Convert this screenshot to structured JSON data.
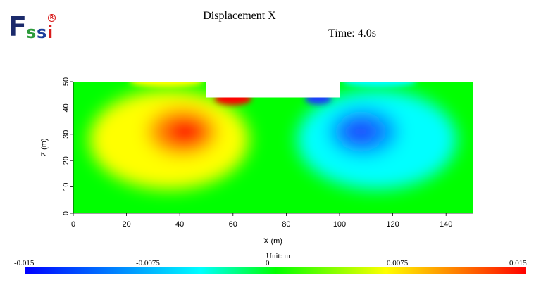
{
  "title": "Displacement X",
  "time_label": "Time: 4.0s",
  "logo": {
    "f": "F",
    "s1": "s",
    "s2": "s",
    "i": "i",
    "reg": "R"
  },
  "colors": {
    "min": "#0000ff",
    "low": "#00ffff",
    "mid": "#00ff00",
    "high": "#ffff00",
    "max": "#ff0000"
  },
  "chart_data": {
    "type": "heatmap",
    "title": "Displacement X",
    "xlabel": "X (m)",
    "ylabel": "Z (m)",
    "xlim": [
      0,
      150
    ],
    "ylim": [
      0,
      50
    ],
    "x_ticks": [
      0,
      20,
      40,
      60,
      80,
      100,
      120,
      140
    ],
    "y_ticks": [
      0,
      10,
      20,
      30,
      40,
      50
    ],
    "domain_outline": [
      [
        0,
        0
      ],
      [
        150,
        0
      ],
      [
        150,
        50
      ],
      [
        100,
        50
      ],
      [
        100,
        44
      ],
      [
        50,
        44
      ],
      [
        50,
        50
      ],
      [
        0,
        50
      ]
    ],
    "features": [
      {
        "label": "positive peak",
        "x": 42,
        "z": 31,
        "value": 0.015
      },
      {
        "label": "negative peak",
        "x": 108,
        "z": 31,
        "value": -0.015
      },
      {
        "label": "positive pocket",
        "x": 60,
        "z": 43,
        "value": 0.015
      },
      {
        "label": "negative pocket",
        "x": 92,
        "z": 43,
        "value": -0.015
      }
    ],
    "colorbar": {
      "unit_label": "Unit:  m",
      "ticks": [
        "-0.015",
        "-0.0075",
        "0",
        "0.0075",
        "0.015"
      ],
      "range": [
        -0.015,
        0.015
      ]
    }
  }
}
